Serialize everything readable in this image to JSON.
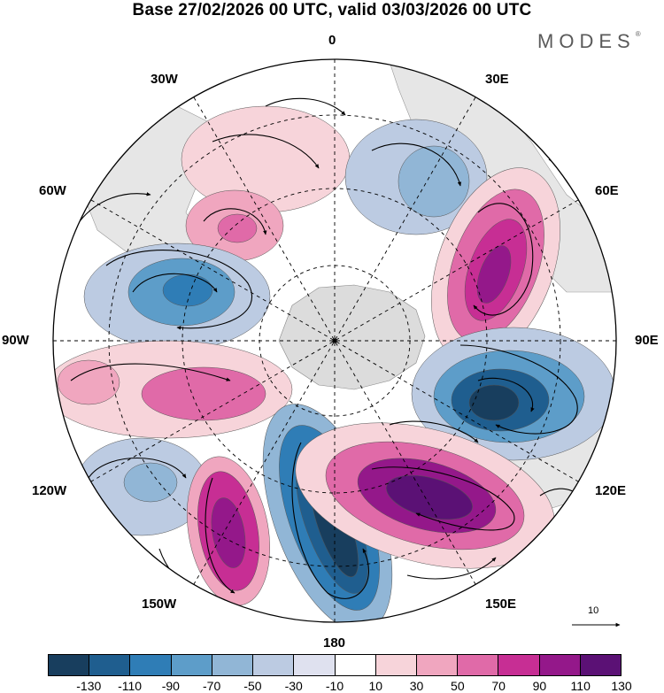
{
  "title": "Base 27/02/2026 00 UTC, valid 03/03/2026 00 UTC",
  "brand": {
    "name": "MODES",
    "mark": "®"
  },
  "longitude_labels": {
    "top": "0",
    "top_right": "30E",
    "upper_right": "60E",
    "right": "90E",
    "lower_right": "120E",
    "bottom_right": "150E",
    "bottom": "180",
    "bottom_left": "150W",
    "lower_left": "120W",
    "left": "90W",
    "upper_left": "60W",
    "top_left": "30W"
  },
  "reference_vector": {
    "label": "10"
  },
  "colorbar": {
    "tick_labels": [
      "-130",
      "-110",
      "-90",
      "-70",
      "-50",
      "-30",
      "-10",
      "10",
      "30",
      "50",
      "70",
      "90",
      "110",
      "130"
    ],
    "colors": [
      "#183e5e",
      "#1f5e8f",
      "#2f7db6",
      "#5d9dc9",
      "#91b6d6",
      "#bccbe2",
      "#dfe1ef",
      "#ffffff",
      "#f7d4da",
      "#f0a6bf",
      "#e06aa8",
      "#c72e94",
      "#94188a",
      "#5b1175"
    ]
  },
  "anomaly_centers": [
    {
      "sign": "negative",
      "value": "-130"
    },
    {
      "sign": "positive",
      "value": "130"
    }
  ],
  "colors": {
    "land": "#e6e6e6",
    "antarctica": "#dcdcdc",
    "grid": "#000000",
    "outline": "#000000"
  }
}
